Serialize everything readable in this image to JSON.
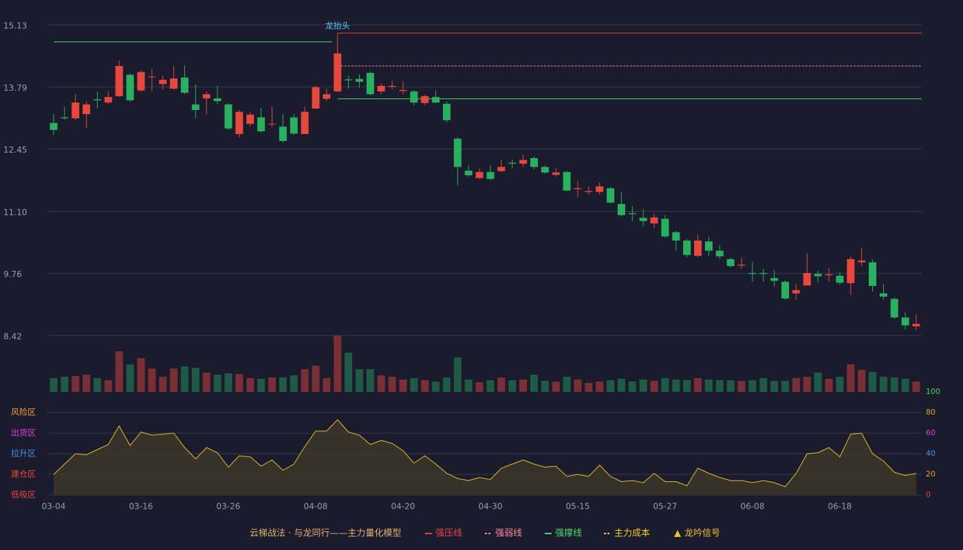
{
  "chart_data": [
    {
      "type": "candlestick",
      "categories": [
        "03-04",
        null,
        null,
        null,
        null,
        null,
        null,
        null,
        "03-16",
        null,
        null,
        null,
        null,
        null,
        null,
        null,
        "03-26",
        null,
        null,
        null,
        null,
        null,
        null,
        null,
        "04-08",
        null,
        null,
        null,
        null,
        null,
        null,
        null,
        "04-20",
        null,
        null,
        null,
        null,
        null,
        null,
        null,
        "04-30",
        null,
        null,
        null,
        null,
        null,
        null,
        null,
        "05-15",
        null,
        null,
        null,
        null,
        null,
        null,
        null,
        "05-27",
        null,
        null,
        null,
        null,
        null,
        null,
        null,
        "06-08",
        null,
        null,
        null,
        null,
        null,
        null,
        null,
        "06-18",
        null,
        null,
        null,
        null,
        null,
        null,
        null
      ],
      "open": [
        13.01,
        13.13,
        13.11,
        13.2,
        13.52,
        13.45,
        13.59,
        14.05,
        13.71,
        14.0,
        13.85,
        13.75,
        13.99,
        13.41,
        13.54,
        13.54,
        13.41,
        12.77,
        12.99,
        13.13,
        12.98,
        12.93,
        13.13,
        12.77,
        13.32,
        13.53,
        13.69,
        13.95,
        13.96,
        14.09,
        13.69,
        13.79,
        13.7,
        13.69,
        13.44,
        13.57,
        13.42,
        12.67,
        11.98,
        11.82,
        11.95,
        11.97,
        12.15,
        12.13,
        12.25,
        12.06,
        11.89,
        11.95,
        11.58,
        11.52,
        11.52,
        11.6,
        11.26,
        11.06,
        10.96,
        10.84,
        10.94,
        10.65,
        10.47,
        10.14,
        10.45,
        10.25,
        10.07,
        9.93,
        9.77,
        9.77,
        9.66,
        9.58,
        9.33,
        9.5,
        9.75,
        9.72,
        9.71,
        9.55,
        10.0,
        10.0,
        9.33,
        9.21,
        8.81,
        8.62
      ],
      "high": [
        13.2,
        13.36,
        13.63,
        13.48,
        13.69,
        13.69,
        14.36,
        14.08,
        14.14,
        14.18,
        14.03,
        14.24,
        14.25,
        13.84,
        13.69,
        13.81,
        13.44,
        13.29,
        13.25,
        13.33,
        13.36,
        13.2,
        13.2,
        13.36,
        13.81,
        13.75,
        14.95,
        14.03,
        14.06,
        14.12,
        13.87,
        13.93,
        13.91,
        13.72,
        13.62,
        13.71,
        13.48,
        12.7,
        12.1,
        12.03,
        12.1,
        12.22,
        12.22,
        12.32,
        12.28,
        12.09,
        12.04,
        11.98,
        11.76,
        11.64,
        11.73,
        11.63,
        11.52,
        11.21,
        11.15,
        11.05,
        11.02,
        10.68,
        10.5,
        10.6,
        10.56,
        10.37,
        10.11,
        10.1,
        10.01,
        9.86,
        9.83,
        9.61,
        9.53,
        10.19,
        9.82,
        9.87,
        9.79,
        10.13,
        10.31,
        10.06,
        9.53,
        9.24,
        8.92,
        8.88
      ],
      "low": [
        12.75,
        13.07,
        13.07,
        12.9,
        13.32,
        13.42,
        13.57,
        13.47,
        13.69,
        13.69,
        13.73,
        13.72,
        13.63,
        13.11,
        13.19,
        13.41,
        12.86,
        12.7,
        12.93,
        12.8,
        12.92,
        12.58,
        12.75,
        12.77,
        13.32,
        13.48,
        13.68,
        13.75,
        13.77,
        13.6,
        13.63,
        13.73,
        13.63,
        13.39,
        13.39,
        13.44,
        13.02,
        11.66,
        11.84,
        11.8,
        11.77,
        11.94,
        12.03,
        12.06,
        12.01,
        11.91,
        11.85,
        11.54,
        11.4,
        11.46,
        11.46,
        11.27,
        10.99,
        10.89,
        10.78,
        10.74,
        10.53,
        10.25,
        10.11,
        10.11,
        10.14,
        10.07,
        9.89,
        9.86,
        9.58,
        9.58,
        9.47,
        9.19,
        9.19,
        9.5,
        9.55,
        9.58,
        9.52,
        9.3,
        9.92,
        9.37,
        9.19,
        8.78,
        8.55,
        8.54
      ],
      "close": [
        12.86,
        13.11,
        13.45,
        13.41,
        13.5,
        13.57,
        14.24,
        13.5,
        14.11,
        14.01,
        13.94,
        13.97,
        13.66,
        13.29,
        13.63,
        13.48,
        12.89,
        13.25,
        13.19,
        12.83,
        12.99,
        12.62,
        12.78,
        13.25,
        13.78,
        13.63,
        14.51,
        13.93,
        13.9,
        13.63,
        13.81,
        13.81,
        13.72,
        13.45,
        13.59,
        13.45,
        13.07,
        12.06,
        11.88,
        11.95,
        11.8,
        12.06,
        12.13,
        12.21,
        12.06,
        11.94,
        11.94,
        11.55,
        11.6,
        11.54,
        11.64,
        11.29,
        11.02,
        11.04,
        10.89,
        10.97,
        10.56,
        10.47,
        10.16,
        10.47,
        10.25,
        10.13,
        9.92,
        9.95,
        9.75,
        9.75,
        9.6,
        9.22,
        9.4,
        9.77,
        9.7,
        9.74,
        9.56,
        10.07,
        10.04,
        9.49,
        9.26,
        8.81,
        8.64,
        8.67
      ],
      "volume": [
        20,
        22,
        23,
        25,
        20,
        17,
        59,
        40,
        49,
        34,
        22,
        34,
        37,
        35,
        28,
        25,
        27,
        26,
        20,
        19,
        21,
        21,
        24,
        33,
        38,
        20,
        82,
        57,
        33,
        33,
        24,
        22,
        18,
        20,
        17,
        15,
        21,
        50,
        18,
        14,
        17,
        21,
        17,
        18,
        25,
        16,
        15,
        22,
        18,
        13,
        15,
        17,
        19,
        15,
        18,
        16,
        20,
        18,
        17,
        20,
        18,
        17,
        17,
        16,
        17,
        20,
        16,
        16,
        20,
        22,
        28,
        19,
        22,
        40,
        32,
        29,
        22,
        21,
        19,
        15
      ],
      "ylim": [
        8.42,
        15.13
      ],
      "yticks": [
        15.13,
        13.79,
        12.45,
        {
          "value": 11.1,
          "label": "11.10"
        },
        9.76,
        8.42
      ],
      "grid": true,
      "up_color": "#e8473c",
      "down_color": "#27b15f",
      "up_volume_color": "#7a2f35",
      "down_volume_color": "#1f5a44",
      "levels": [
        {
          "value": 14.76,
          "from": 0,
          "to": 25,
          "legend": 2
        },
        {
          "value": 14.95,
          "from": 26,
          "to": 79,
          "legend": 0
        },
        {
          "value": 14.24,
          "from": 26,
          "to": 79,
          "legend": 1
        },
        {
          "value": 13.53,
          "from": 26,
          "to": 79,
          "legend": 2
        }
      ],
      "annotation": {
        "text": "龙抬头",
        "index": 26,
        "color": "#5bc8ff"
      },
      "legend_title": "云梯战法 · 与龙同行——主力量化模型",
      "legend": [
        {
          "label": "强压线",
          "color": "#e8473c",
          "style": "solid"
        },
        {
          "label": "强弱线",
          "color": "#ff8a9a",
          "style": "dashed"
        },
        {
          "label": "强撑线",
          "color": "#4ddc6a",
          "style": "solid"
        },
        {
          "label": "主力成本",
          "color": "#f0d020",
          "style": "dashed"
        },
        {
          "label": "龙吟信号",
          "color": "#f0c030",
          "style": "triangle"
        }
      ]
    },
    {
      "type": "line",
      "values": [
        20,
        30,
        40,
        39,
        44,
        49,
        67,
        48,
        61,
        58,
        59,
        60,
        46,
        35,
        46,
        41,
        27,
        38,
        37,
        28,
        34,
        24,
        30,
        47,
        62,
        62,
        73,
        61,
        58,
        49,
        53,
        50,
        43,
        31,
        38,
        30,
        21,
        16,
        14,
        17,
        15,
        26,
        30,
        34,
        30,
        27,
        28,
        18,
        20,
        18,
        29,
        18,
        13,
        14,
        12,
        21,
        13,
        13,
        9,
        26,
        21,
        17,
        14,
        14,
        12,
        14,
        12,
        8,
        21,
        40,
        41,
        46,
        37,
        59,
        60,
        40,
        33,
        22,
        19,
        21
      ],
      "color": "#e8c020",
      "ylim": [
        0,
        100
      ],
      "yticks": [
        0,
        20,
        40,
        60,
        80,
        100
      ],
      "ytick_colors": [
        "#e8473c",
        "#f0a030",
        "#4a90e2",
        "#e040e0",
        "#f0a030",
        "#3ddc5a"
      ],
      "zones": [
        {
          "label": "风险区",
          "value": 80,
          "color": "#f0a030"
        },
        {
          "label": "出货区",
          "value": 60,
          "color": "#e040e0"
        },
        {
          "label": "拉升区",
          "value": 40,
          "color": "#4a90e2"
        },
        {
          "label": "建仓区",
          "value": 20,
          "color": "#e8473c"
        },
        {
          "label": "低吸区",
          "value": 0,
          "color": "#e8473c"
        }
      ]
    }
  ]
}
